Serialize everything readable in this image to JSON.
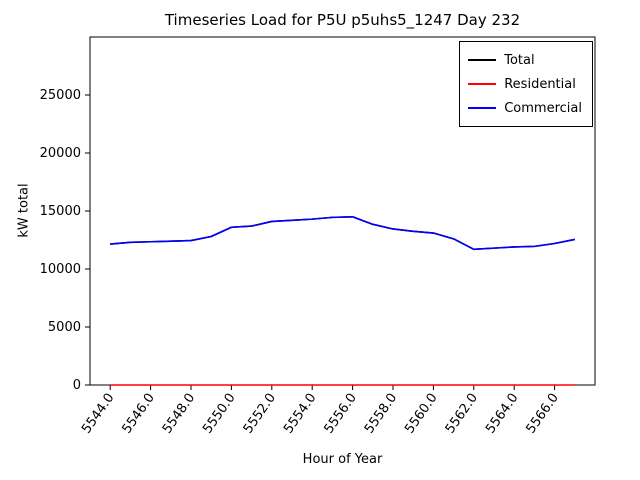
{
  "figure": {
    "title": "Timeseries Load for P5U p5uhs5_1247  Day 232",
    "xlabel": "Hour of Year",
    "ylabel": "kW total"
  },
  "chart_data": {
    "type": "line",
    "title": "Timeseries Load for P5U p5uhs5_1247  Day 232",
    "xlabel": "Hour of Year",
    "ylabel": "kW total",
    "xlim": [
      5543,
      5568
    ],
    "ylim": [
      0,
      30000
    ],
    "grid": false,
    "legend_position": "upper right",
    "x_ticks": [
      5544,
      5546,
      5548,
      5550,
      5552,
      5554,
      5556,
      5558,
      5560,
      5562,
      5564,
      5566
    ],
    "x_tick_labels": [
      "5544.0",
      "5546.0",
      "5548.0",
      "5550.0",
      "5552.0",
      "5554.0",
      "5556.0",
      "5558.0",
      "5560.0",
      "5562.0",
      "5564.0",
      "5566.0"
    ],
    "y_ticks": [
      0,
      5000,
      10000,
      15000,
      20000,
      25000
    ],
    "y_tick_labels": [
      "0",
      "5000",
      "10000",
      "15000",
      "20000",
      "25000"
    ],
    "x": [
      5544,
      5545,
      5546,
      5547,
      5548,
      5549,
      5550,
      5551,
      5552,
      5553,
      5554,
      5555,
      5556,
      5557,
      5558,
      5559,
      5560,
      5561,
      5562,
      5563,
      5564,
      5565,
      5566,
      5567
    ],
    "series": [
      {
        "name": "Total",
        "color": "#000000",
        "values": [
          12150,
          12300,
          12350,
          12400,
          12450,
          12800,
          13600,
          13700,
          14100,
          14200,
          14300,
          14450,
          14500,
          13850,
          13450,
          13250,
          13100,
          12600,
          11700,
          11800,
          11900,
          11950,
          12200,
          12550
        ]
      },
      {
        "name": "Residential",
        "color": "#ff0000",
        "values": [
          0,
          0,
          0,
          0,
          0,
          0,
          0,
          0,
          0,
          0,
          0,
          0,
          0,
          0,
          0,
          0,
          0,
          0,
          0,
          0,
          0,
          0,
          0,
          0
        ]
      },
      {
        "name": "Commercial",
        "color": "#0000ff",
        "values": [
          12150,
          12300,
          12350,
          12400,
          12450,
          12800,
          13600,
          13700,
          14100,
          14200,
          14300,
          14450,
          14500,
          13850,
          13450,
          13250,
          13100,
          12600,
          11700,
          11800,
          11900,
          11950,
          12200,
          12550
        ]
      }
    ]
  }
}
